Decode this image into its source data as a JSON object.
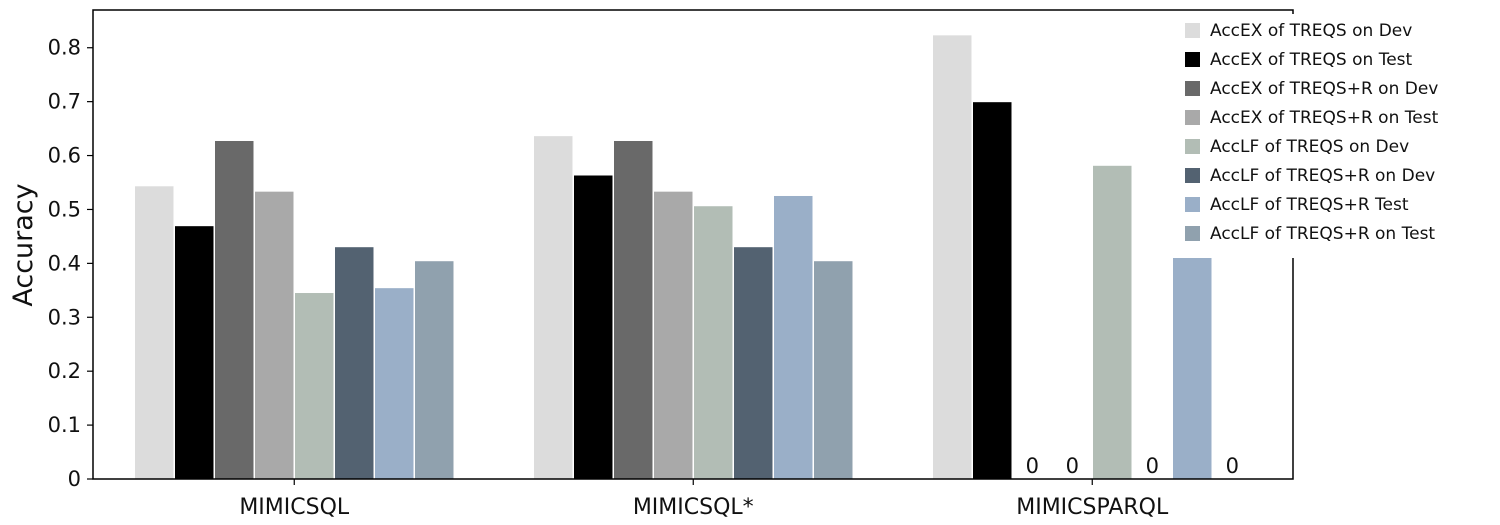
{
  "chart_data": {
    "type": "bar",
    "title": "",
    "xlabel": "",
    "ylabel": "Accuracy",
    "ylim": [
      0,
      0.87
    ],
    "yticks": [
      "0",
      "0.1",
      "0.2",
      "0.3",
      "0.4",
      "0.5",
      "0.6",
      "0.7",
      "0.8"
    ],
    "categories": [
      "MIMICSQL",
      "MIMICSQL*",
      "MIMICSPARQL"
    ],
    "zero_label": "0",
    "legend_position": "top-right",
    "grid": false,
    "series": [
      {
        "name": "AccEX of TREQS on Dev",
        "color": "#dcdcdc",
        "values": [
          0.543,
          0.636,
          0.823
        ]
      },
      {
        "name": "AccEX of TREQS on Test",
        "color": "#000000",
        "values": [
          0.469,
          0.563,
          0.699
        ]
      },
      {
        "name": "AccEX of TREQS+R on Dev",
        "color": "#696969",
        "values": [
          0.627,
          0.627,
          0
        ]
      },
      {
        "name": "AccEX of TREQS+R on Test",
        "color": "#a9a9a9",
        "values": [
          0.533,
          0.533,
          0
        ]
      },
      {
        "name": "AccLF of TREQS on Dev",
        "color": "#b2bdb5",
        "values": [
          0.345,
          0.506,
          0.581
        ]
      },
      {
        "name": "AccLF of TREQS+R on Dev",
        "color": "#536271",
        "values": [
          0.43,
          0.43,
          0
        ]
      },
      {
        "name": "AccLF of TREQS+R Test",
        "color": "#9aafc8",
        "values": [
          0.354,
          0.525,
          0.419
        ]
      },
      {
        "name": "AccLF of TREQS+R on Test",
        "color": "#90a1ae",
        "values": [
          0.404,
          0.404,
          0
        ]
      }
    ]
  }
}
